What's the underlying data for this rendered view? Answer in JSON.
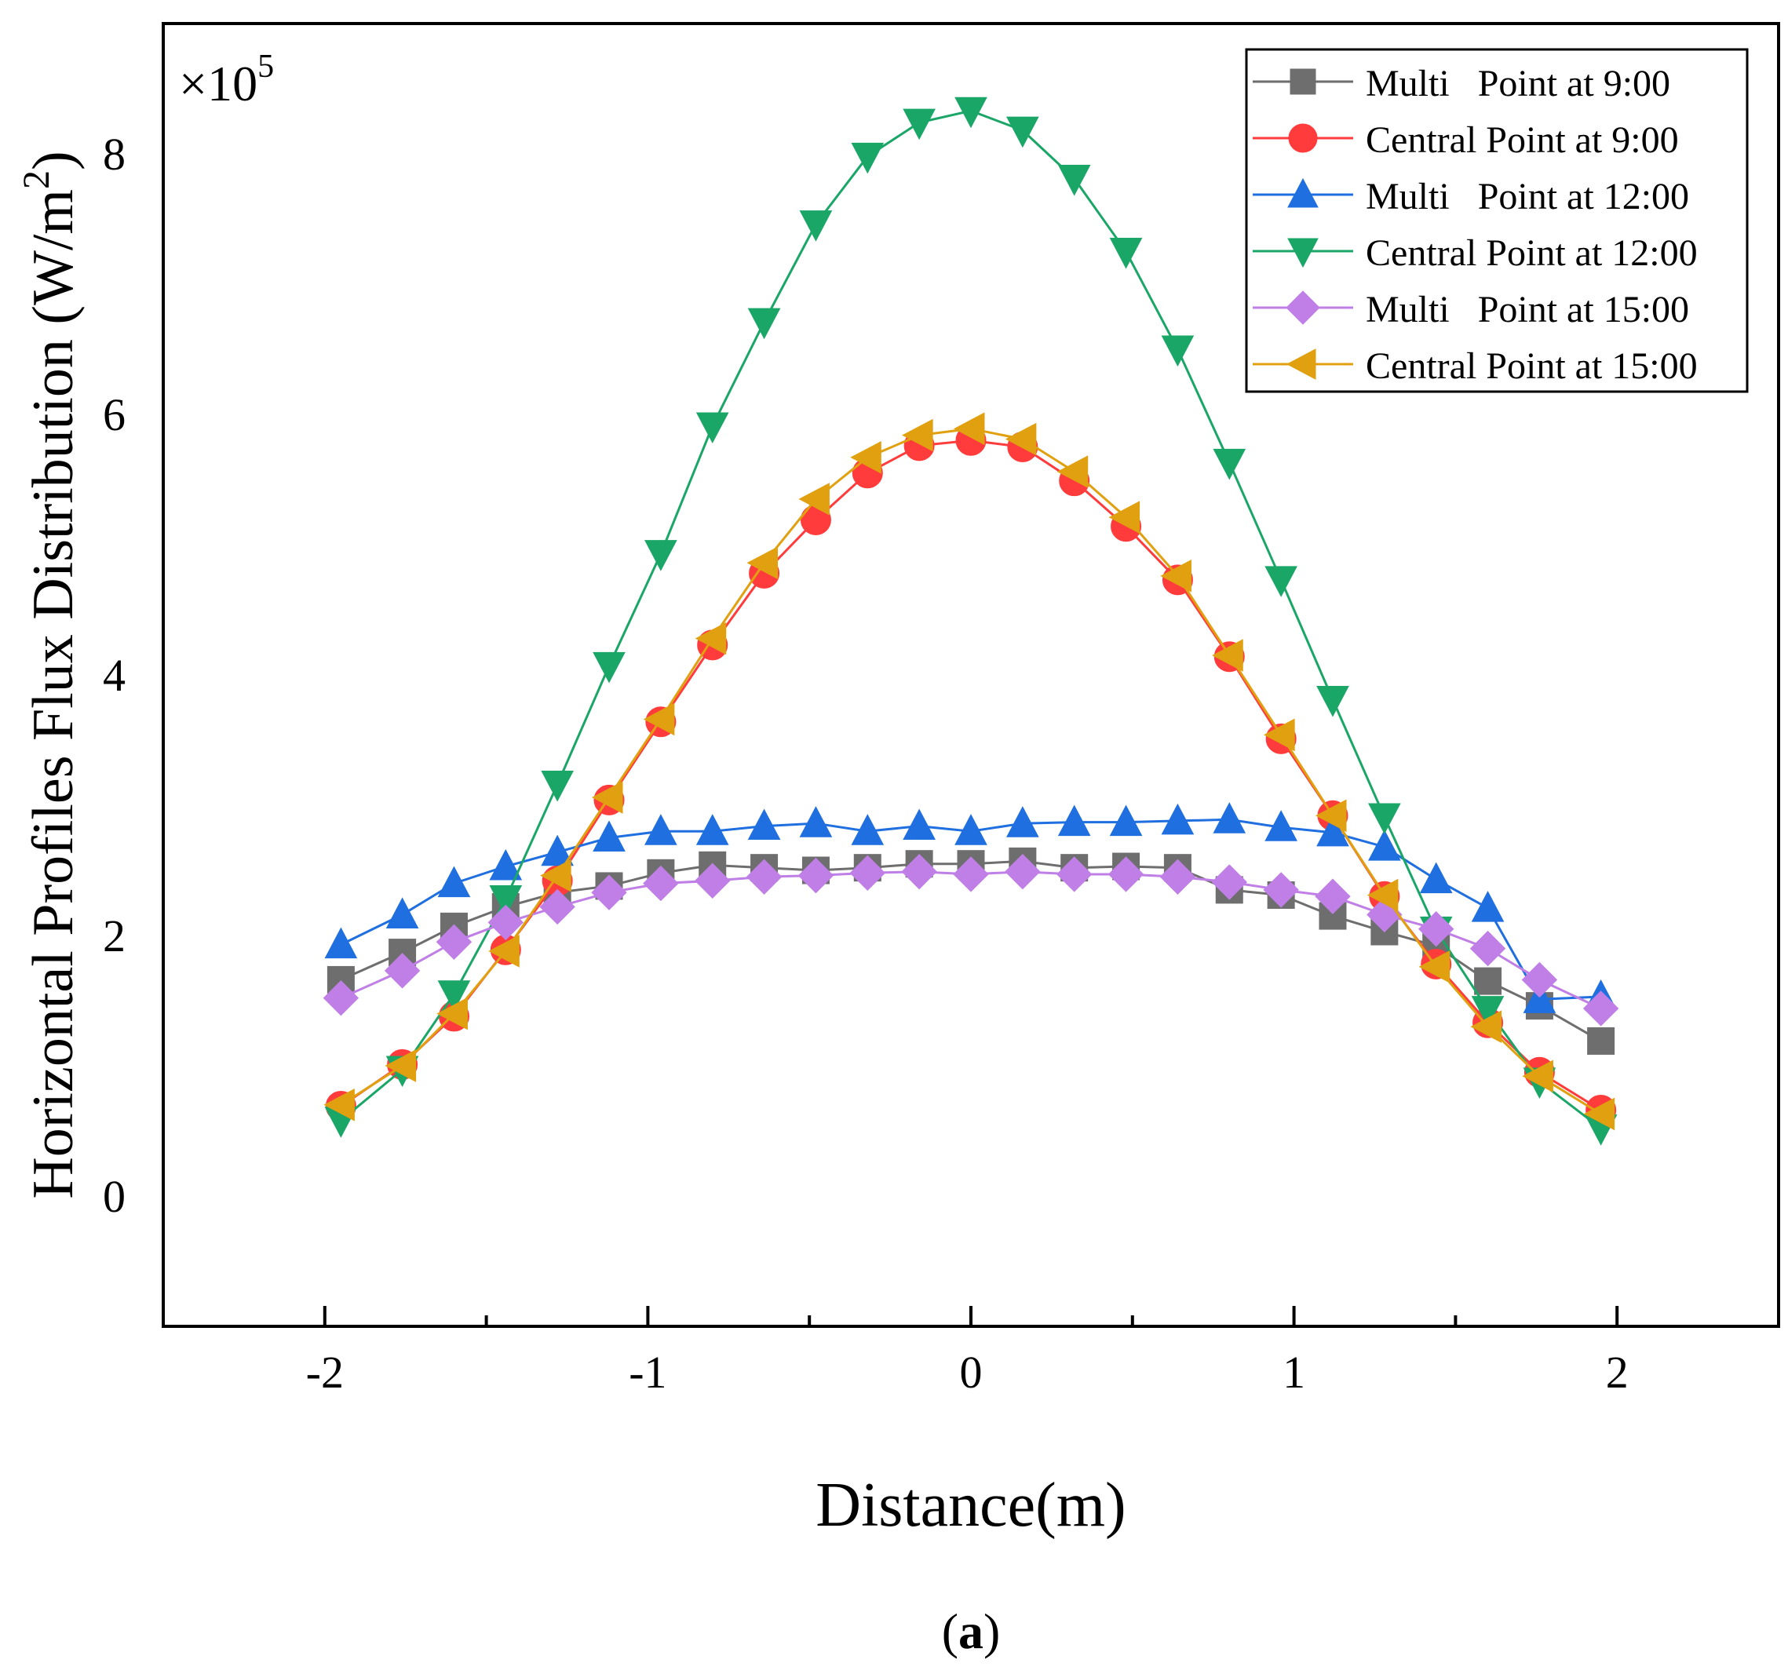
{
  "figure": {
    "panel_label": "a"
  },
  "chart_data": {
    "type": "line",
    "xlabel": "Distance(m)",
    "ylabel": "Horizontal Profiles Flux Distribution (W/m",
    "ylabel_sup": "2",
    "ylabel_close": ")",
    "multiplier_text": "×10",
    "multiplier_exp": "5",
    "xlim": [
      -2.5,
      2.5
    ],
    "ylim": [
      -1.0,
      9.0
    ],
    "xticks": [
      -2,
      -1,
      0,
      1,
      2
    ],
    "xtick_labels": [
      "-2",
      "-1",
      "0",
      "1",
      "2"
    ],
    "xminor_ticks": [
      -1.5,
      -0.5,
      0.5,
      1.5
    ],
    "yticks": [
      0,
      2,
      4,
      6,
      8
    ],
    "ytick_labels": [
      "0",
      "2",
      "4",
      "6",
      "8"
    ],
    "grid": false,
    "legend_position": "top-right",
    "x": [
      -1.95,
      -1.76,
      -1.6,
      -1.44,
      -1.28,
      -1.12,
      -0.96,
      -0.8,
      -0.64,
      -0.48,
      -0.32,
      -0.16,
      0.0,
      0.16,
      0.32,
      0.48,
      0.64,
      0.8,
      0.96,
      1.12,
      1.28,
      1.44,
      1.6,
      1.76,
      1.95
    ],
    "series": [
      {
        "name": "Multi   Point at 9:00",
        "color": "#6e6e6e",
        "marker": "square",
        "values": [
          1.66,
          1.87,
          2.07,
          2.22,
          2.33,
          2.38,
          2.48,
          2.54,
          2.52,
          2.5,
          2.52,
          2.55,
          2.55,
          2.57,
          2.52,
          2.53,
          2.52,
          2.35,
          2.31,
          2.15,
          2.03,
          1.92,
          1.65,
          1.46,
          1.19
        ]
      },
      {
        "name": "Central Point at 9:00",
        "color": "#ff3b3b",
        "marker": "circle",
        "values": [
          0.69,
          1.01,
          1.38,
          1.89,
          2.42,
          3.04,
          3.64,
          4.23,
          4.78,
          5.19,
          5.55,
          5.76,
          5.8,
          5.75,
          5.49,
          5.14,
          4.73,
          4.14,
          3.51,
          2.92,
          2.3,
          1.78,
          1.33,
          0.95,
          0.66
        ]
      },
      {
        "name": "Multi   Point at 12:00",
        "color": "#1f6fe0",
        "marker": "triangle-up",
        "values": [
          1.93,
          2.16,
          2.4,
          2.53,
          2.64,
          2.75,
          2.8,
          2.8,
          2.84,
          2.86,
          2.8,
          2.84,
          2.8,
          2.86,
          2.87,
          2.87,
          2.88,
          2.89,
          2.83,
          2.79,
          2.68,
          2.43,
          2.21,
          1.51,
          1.53
        ]
      },
      {
        "name": "Central Point at 12:00",
        "color": "#1aa667",
        "marker": "triangle-down",
        "values": [
          0.58,
          0.97,
          1.55,
          2.28,
          3.16,
          4.07,
          4.93,
          5.91,
          6.71,
          7.46,
          7.98,
          8.24,
          8.33,
          8.18,
          7.81,
          7.25,
          6.5,
          5.63,
          4.73,
          3.81,
          2.91,
          2.04,
          1.43,
          0.88,
          0.52
        ]
      },
      {
        "name": "Multi   Point at 15:00",
        "color": "#bf7fe6",
        "marker": "diamond",
        "values": [
          1.52,
          1.73,
          1.95,
          2.1,
          2.22,
          2.33,
          2.4,
          2.42,
          2.45,
          2.46,
          2.48,
          2.49,
          2.47,
          2.49,
          2.47,
          2.47,
          2.45,
          2.41,
          2.35,
          2.3,
          2.16,
          2.05,
          1.9,
          1.66,
          1.44
        ]
      },
      {
        "name": "Central Point at 15:00",
        "color": "#e0a010",
        "marker": "triangle-left",
        "values": [
          0.7,
          1.0,
          1.4,
          1.88,
          2.46,
          3.06,
          3.66,
          4.28,
          4.86,
          5.35,
          5.67,
          5.84,
          5.89,
          5.81,
          5.56,
          5.21,
          4.76,
          4.15,
          3.54,
          2.92,
          2.31,
          1.76,
          1.3,
          0.92,
          0.63
        ]
      }
    ]
  }
}
